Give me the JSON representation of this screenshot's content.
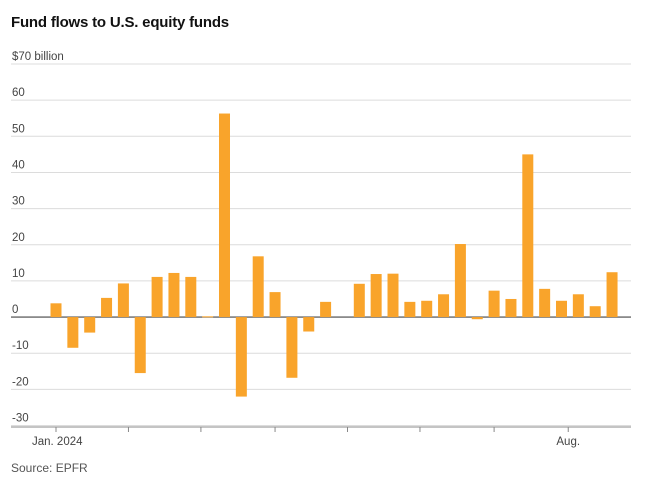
{
  "title": "Fund flows to U.S. equity funds",
  "source": "Source: EPFR",
  "colors": {
    "bar": "#F9A42B",
    "grid": "#dcdcdc",
    "zero": "#444444"
  },
  "chart_data": {
    "type": "bar",
    "title": "Fund flows to U.S. equity funds",
    "ylabel_top": "$70 billion",
    "ylim": [
      -30,
      70
    ],
    "yticks": [
      -30,
      -20,
      -10,
      0,
      10,
      20,
      30,
      40,
      50,
      60,
      70
    ],
    "ytick_labels": [
      "-30",
      "-20",
      "-10",
      "0",
      "10",
      "20",
      "30",
      "40",
      "50",
      "60",
      "$70 billion"
    ],
    "x_labels": [
      "Jan. 2024",
      "Aug."
    ],
    "grid": true,
    "legend": "none",
    "values": [
      3.8,
      -8.5,
      -4.3,
      5.3,
      9.3,
      -15.5,
      11.1,
      12.2,
      11.1,
      0.2,
      56.3,
      -22.0,
      16.8,
      6.9,
      -16.8,
      -4.0,
      4.2,
      0,
      9.2,
      11.9,
      12.0,
      4.2,
      4.5,
      6.3,
      20.2,
      -0.6,
      7.3,
      5.0,
      45.0,
      7.8,
      4.5,
      6.3,
      3.0,
      12.4
    ],
    "series": [
      {
        "values": [
          3.8,
          -8.5,
          -4.3,
          5.3,
          9.3,
          -15.5,
          11.1,
          12.2,
          11.1,
          0.2,
          56.3,
          -22.0,
          16.8,
          6.9,
          -16.8,
          -4.0,
          4.2,
          0,
          9.2,
          11.9,
          12.0,
          4.2,
          4.5,
          6.3,
          20.2,
          -0.6,
          7.3,
          5.0,
          45.0,
          7.8,
          4.5,
          6.3,
          3.0,
          12.4
        ]
      }
    ]
  }
}
